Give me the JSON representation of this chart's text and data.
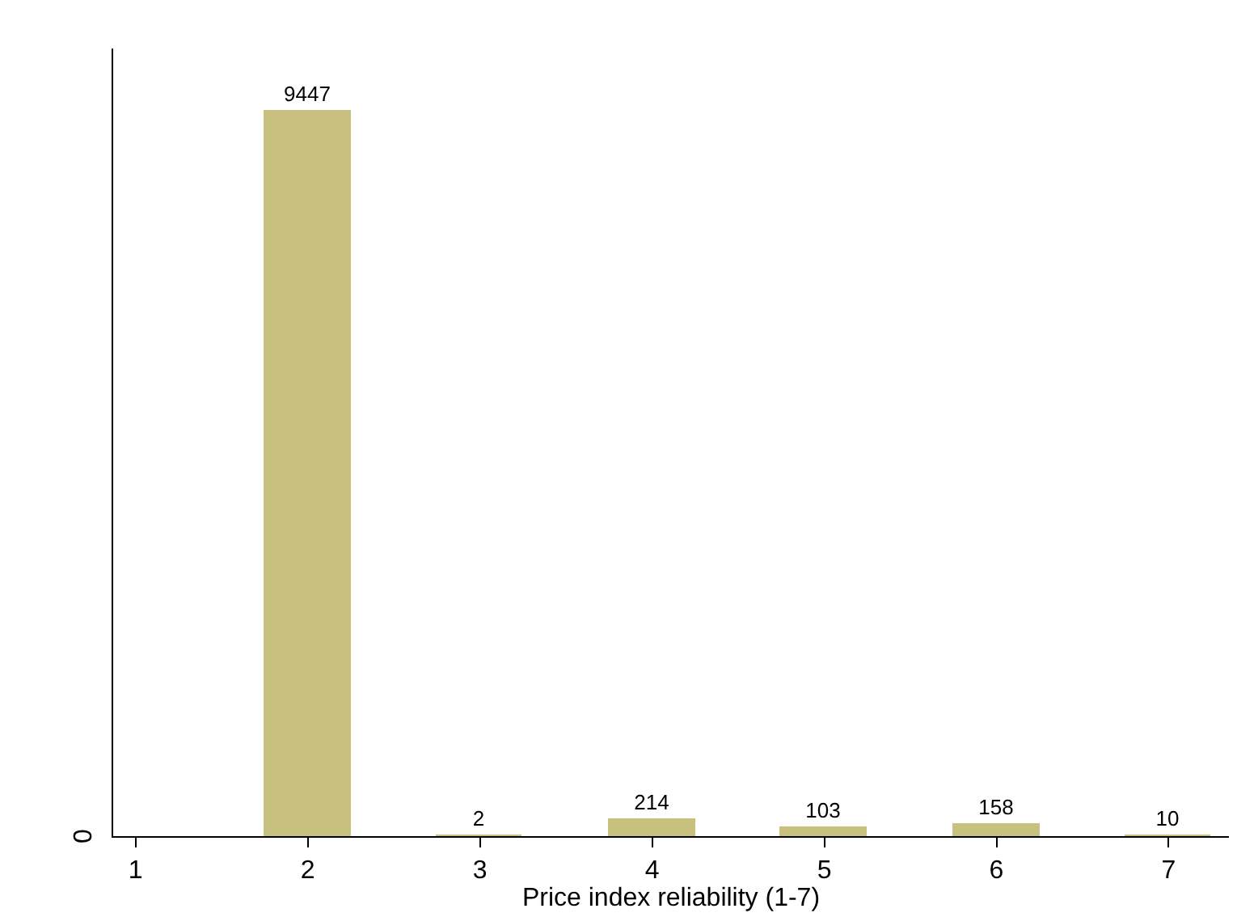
{
  "chart_data": {
    "type": "bar",
    "xlabel": "Price index reliability (1-7)",
    "x": [
      2,
      3,
      4,
      5,
      6,
      7
    ],
    "values": [
      9447,
      2,
      214,
      103,
      158,
      10
    ],
    "color": "#c8c07e",
    "data_labels": true,
    "xlim": [
      0.87,
      7.35
    ],
    "xticks": [
      1,
      2,
      3,
      4,
      5,
      6,
      7
    ],
    "annotations": [
      "0"
    ]
  }
}
